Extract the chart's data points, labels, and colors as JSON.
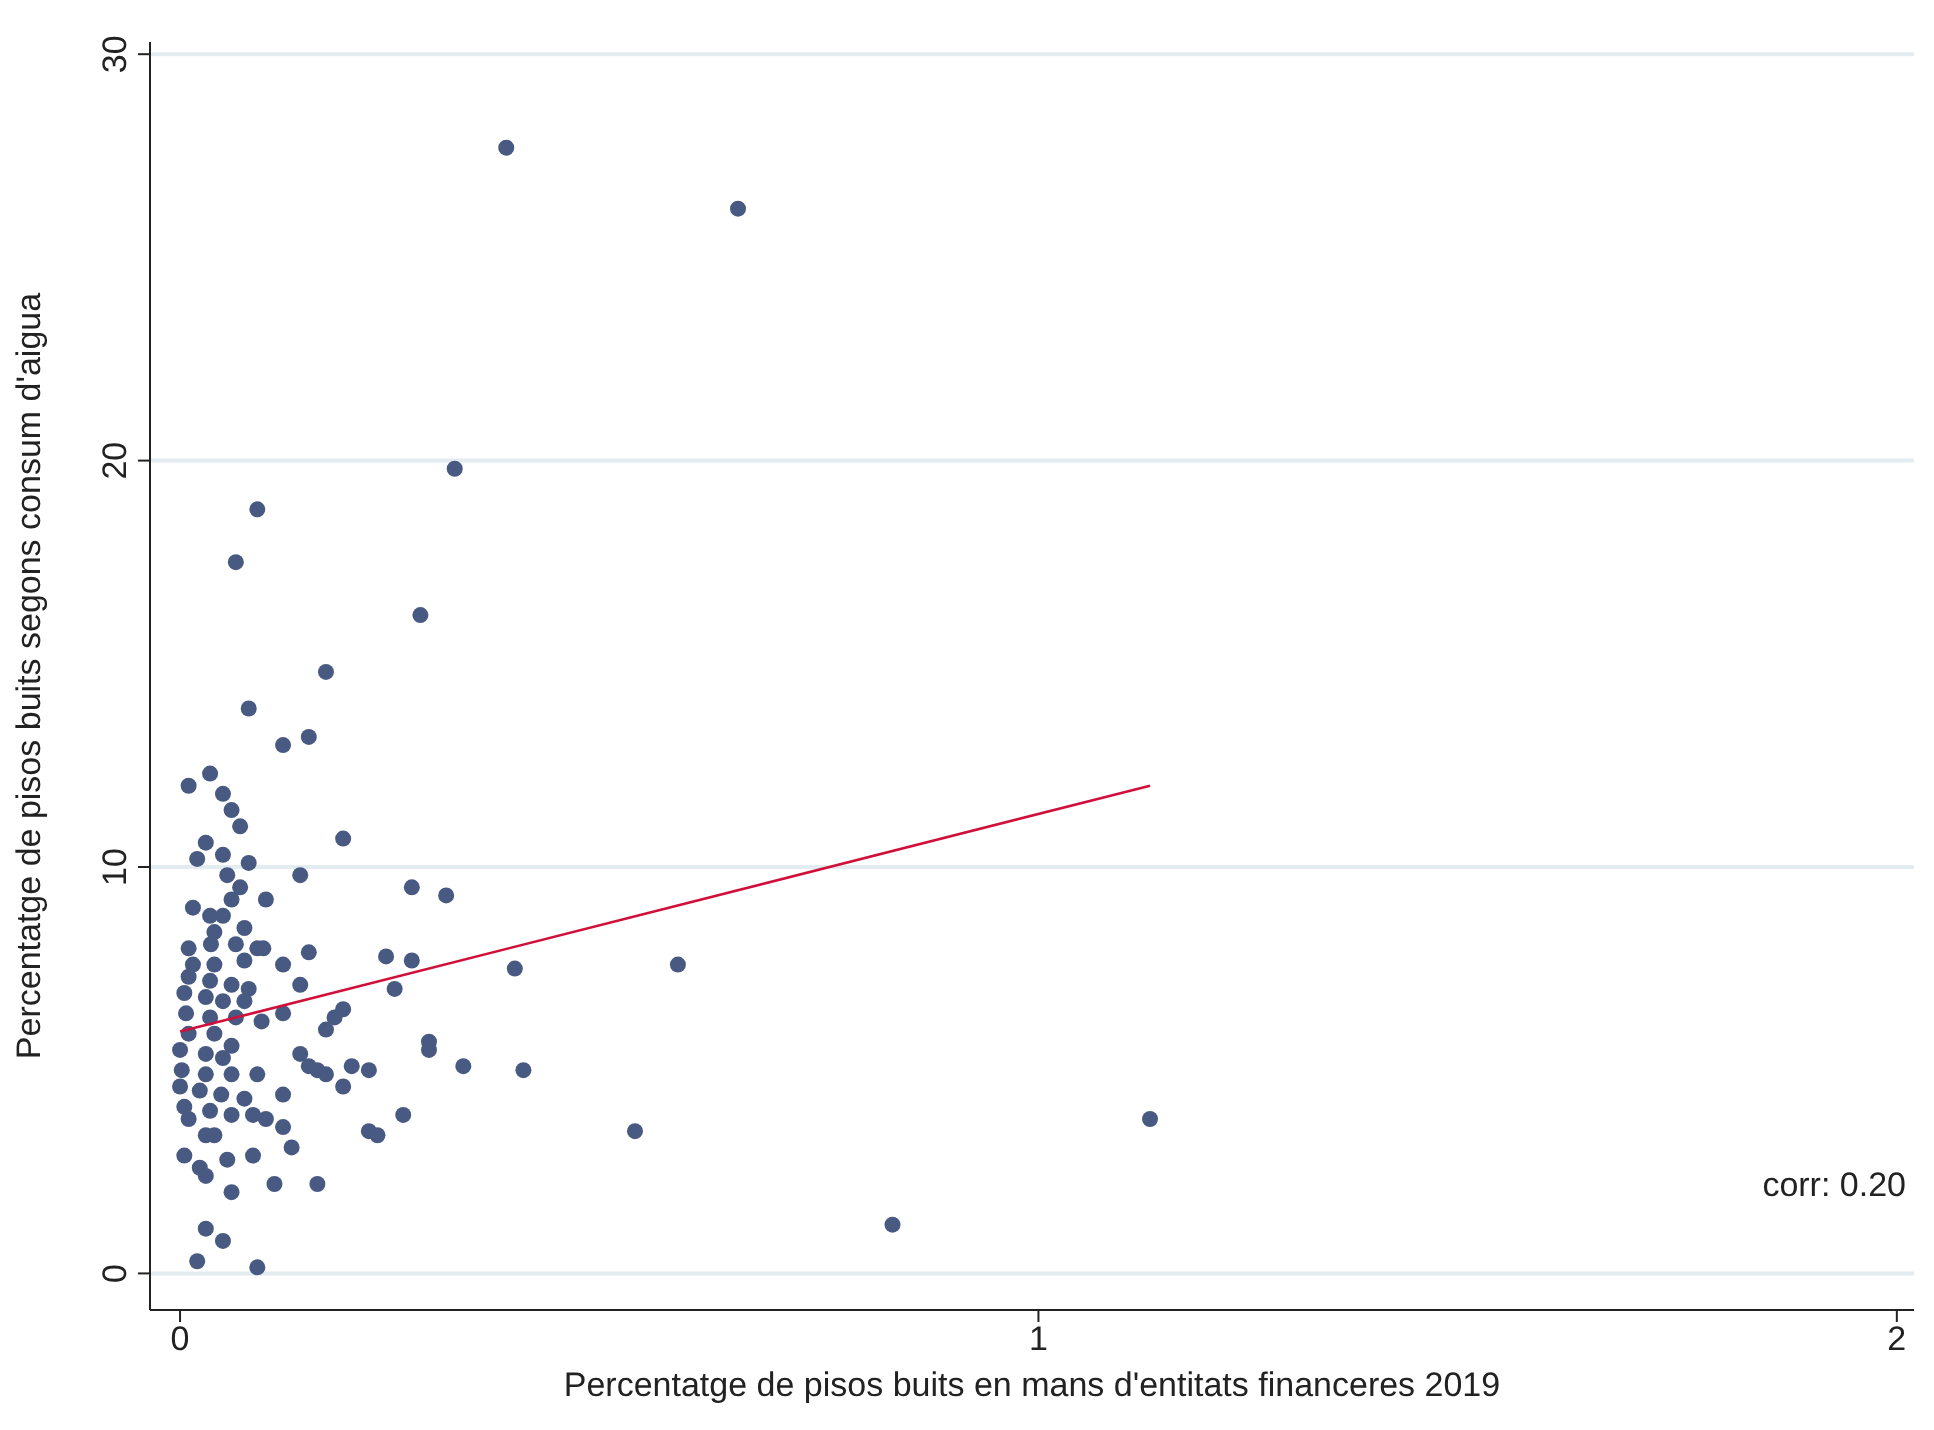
{
  "chart_data": {
    "type": "scatter",
    "xlabel": "Percentatge de pisos buits en mans d'entitats financeres 2019",
    "ylabel": "Percentatge de pisos buits segons consum d'aigua",
    "xlim": [
      -0.035,
      2.02
    ],
    "xticks": [
      0,
      1,
      2
    ],
    "ylim": [
      -0.9,
      30.3
    ],
    "yticks": [
      0,
      10,
      20,
      30
    ],
    "grid": "y",
    "marker": "circle",
    "annotations": [
      "corr: 0.20"
    ],
    "series": [
      {
        "color": "#485a82",
        "x": [
          0.38,
          0.65,
          0.32,
          0.28,
          0.09,
          0.065,
          0.17,
          0.08,
          0.15,
          0.12,
          0.19,
          0.14,
          0.27,
          0.31,
          0.15,
          0.24,
          0.27,
          0.39,
          0.58,
          0.25,
          0.14,
          0.12,
          0.19,
          0.18,
          0.17,
          0.29,
          0.29,
          0.33,
          0.4,
          0.14,
          0.15,
          0.16,
          0.17,
          0.2,
          0.22,
          0.19,
          0.12,
          0.26,
          0.22,
          0.23,
          0.12,
          0.13,
          0.16,
          0.53,
          0.83,
          1.13,
          0.01,
          0.035,
          0.05,
          0.06,
          0.07,
          0.03,
          0.02,
          0.05,
          0.08,
          0.055,
          0.07,
          0.06,
          0.1,
          0.015,
          0.035,
          0.05,
          0.075,
          0.04,
          0.036,
          0.065,
          0.09,
          0.097,
          0.01,
          0.015,
          0.04,
          0.075,
          0.12,
          0.01,
          0.035,
          0.06,
          0.08,
          0.005,
          0.03,
          0.05,
          0.075,
          0.007,
          0.035,
          0.065,
          0.095,
          0.01,
          0.04,
          0.06,
          0.0,
          0.03,
          0.05,
          0.002,
          0.03,
          0.06,
          0.09,
          0.0,
          0.023,
          0.048,
          0.075,
          0.005,
          0.035,
          0.06,
          0.085,
          0.1,
          0.01,
          0.03,
          0.04,
          0.005,
          0.023,
          0.03,
          0.055,
          0.085,
          0.06,
          0.11,
          0.03,
          0.05,
          0.02,
          0.09
        ],
        "values": [
          27.7,
          26.2,
          19.8,
          16.2,
          18.8,
          17.5,
          14.8,
          13.9,
          13.2,
          13.0,
          10.7,
          9.8,
          9.5,
          9.3,
          7.9,
          7.8,
          7.7,
          7.5,
          7.6,
          7.0,
          7.1,
          6.4,
          6.5,
          6.3,
          6.0,
          5.7,
          5.5,
          5.1,
          5.0,
          5.4,
          5.1,
          5.0,
          4.9,
          5.1,
          5.0,
          4.6,
          4.4,
          3.9,
          3.5,
          3.4,
          3.6,
          3.1,
          2.2,
          3.5,
          1.2,
          3.8,
          12.0,
          12.3,
          11.8,
          11.4,
          11.0,
          10.6,
          10.2,
          10.3,
          10.1,
          9.8,
          9.5,
          9.2,
          9.2,
          9.0,
          8.8,
          8.8,
          8.5,
          8.4,
          8.1,
          8.1,
          8.0,
          8.0,
          8.0,
          7.6,
          7.6,
          7.7,
          7.6,
          7.3,
          7.2,
          7.1,
          7.0,
          6.9,
          6.8,
          6.7,
          6.7,
          6.4,
          6.3,
          6.3,
          6.2,
          5.9,
          5.9,
          5.6,
          5.5,
          5.4,
          5.3,
          5.0,
          4.9,
          4.9,
          4.9,
          4.6,
          4.5,
          4.4,
          4.3,
          4.1,
          4.0,
          3.9,
          3.9,
          3.8,
          3.8,
          3.4,
          3.4,
          2.9,
          2.6,
          2.4,
          2.8,
          2.9,
          2.0,
          2.2,
          1.1,
          0.8,
          0.3,
          0.15
        ]
      },
      {
        "type": "line",
        "marker": "none",
        "color": "#d0103a",
        "x": [
          0,
          1.13
        ],
        "values": [
          5.95,
          12.0
        ]
      }
    ]
  }
}
